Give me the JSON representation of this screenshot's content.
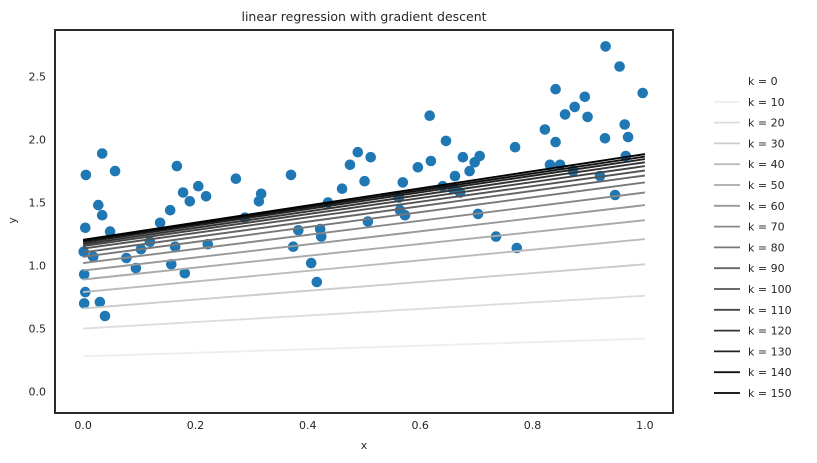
{
  "chart_data": {
    "type": "scatter",
    "title": "linear regression with gradient descent",
    "xlabel": "x",
    "ylabel": "y",
    "xlim": [
      -0.05,
      1.05
    ],
    "ylim": [
      -0.17,
      2.87
    ],
    "xticks": [
      0.0,
      0.2,
      0.4,
      0.6,
      0.8,
      1.0
    ],
    "yticks": [
      0.0,
      0.5,
      1.0,
      1.5,
      2.0,
      2.5
    ],
    "grid": false,
    "legend_position": "right-outside",
    "point_color": "#1f77b4",
    "frame_color": "#2b2b2b",
    "text_color": "#262626",
    "points": [
      [
        0.034,
        1.89
      ],
      [
        0.005,
        1.72
      ],
      [
        0.057,
        1.75
      ],
      [
        0.167,
        1.79
      ],
      [
        0.178,
        1.58
      ],
      [
        0.205,
        1.63
      ],
      [
        0.19,
        1.51
      ],
      [
        0.219,
        1.55
      ],
      [
        0.155,
        1.44
      ],
      [
        0.027,
        1.48
      ],
      [
        0.034,
        1.4
      ],
      [
        0.137,
        1.34
      ],
      [
        0.004,
        1.3
      ],
      [
        0.048,
        1.27
      ],
      [
        0.119,
        1.19
      ],
      [
        0.103,
        1.13
      ],
      [
        0.001,
        1.11
      ],
      [
        0.018,
        1.07
      ],
      [
        0.077,
        1.06
      ],
      [
        0.164,
        1.15
      ],
      [
        0.222,
        1.17
      ],
      [
        0.094,
        0.98
      ],
      [
        0.157,
        1.01
      ],
      [
        0.002,
        0.93
      ],
      [
        0.181,
        0.94
      ],
      [
        0.004,
        0.79
      ],
      [
        0.002,
        0.7
      ],
      [
        0.03,
        0.71
      ],
      [
        0.039,
        0.6
      ],
      [
        0.617,
        2.19
      ],
      [
        0.489,
        1.9
      ],
      [
        0.512,
        1.86
      ],
      [
        0.475,
        1.8
      ],
      [
        0.619,
        1.83
      ],
      [
        0.596,
        1.78
      ],
      [
        0.37,
        1.72
      ],
      [
        0.272,
        1.69
      ],
      [
        0.501,
        1.67
      ],
      [
        0.569,
        1.66
      ],
      [
        0.461,
        1.61
      ],
      [
        0.317,
        1.57
      ],
      [
        0.313,
        1.51
      ],
      [
        0.436,
        1.5
      ],
      [
        0.562,
        1.54
      ],
      [
        0.564,
        1.44
      ],
      [
        0.288,
        1.38
      ],
      [
        0.573,
        1.4
      ],
      [
        0.507,
        1.35
      ],
      [
        0.383,
        1.28
      ],
      [
        0.422,
        1.29
      ],
      [
        0.424,
        1.23
      ],
      [
        0.374,
        1.15
      ],
      [
        0.406,
        1.02
      ],
      [
        0.416,
        0.87
      ],
      [
        0.93,
        2.74
      ],
      [
        0.955,
        2.58
      ],
      [
        0.841,
        2.4
      ],
      [
        0.893,
        2.34
      ],
      [
        0.996,
        2.37
      ],
      [
        0.875,
        2.26
      ],
      [
        0.858,
        2.2
      ],
      [
        0.898,
        2.18
      ],
      [
        0.964,
        2.12
      ],
      [
        0.822,
        2.08
      ],
      [
        0.646,
        1.99
      ],
      [
        0.97,
        2.02
      ],
      [
        0.929,
        2.01
      ],
      [
        0.841,
        1.98
      ],
      [
        0.769,
        1.94
      ],
      [
        0.676,
        1.86
      ],
      [
        0.706,
        1.87
      ],
      [
        0.697,
        1.82
      ],
      [
        0.688,
        1.75
      ],
      [
        0.662,
        1.71
      ],
      [
        0.966,
        1.87
      ],
      [
        0.831,
        1.8
      ],
      [
        0.849,
        1.8
      ],
      [
        0.872,
        1.75
      ],
      [
        0.92,
        1.71
      ],
      [
        0.671,
        1.58
      ],
      [
        0.658,
        1.61
      ],
      [
        0.64,
        1.63
      ],
      [
        0.947,
        1.56
      ],
      [
        0.703,
        1.41
      ],
      [
        0.735,
        1.23
      ],
      [
        0.772,
        1.14
      ]
    ],
    "lines": [
      {
        "k": 0,
        "label": "k = 0",
        "intercept": 0.0,
        "slope": 0.0,
        "color": "#ffffff"
      },
      {
        "k": 10,
        "label": "k = 10",
        "intercept": 0.28,
        "slope": 0.14,
        "color": "#eeeeee"
      },
      {
        "k": 20,
        "label": "k = 20",
        "intercept": 0.5,
        "slope": 0.26,
        "color": "#dddddd"
      },
      {
        "k": 30,
        "label": "k = 30",
        "intercept": 0.66,
        "slope": 0.35,
        "color": "#cccccc"
      },
      {
        "k": 40,
        "label": "k = 40",
        "intercept": 0.79,
        "slope": 0.42,
        "color": "#bbbbbb"
      },
      {
        "k": 50,
        "label": "k = 50",
        "intercept": 0.89,
        "slope": 0.47,
        "color": "#aaaaaa"
      },
      {
        "k": 60,
        "label": "k = 60",
        "intercept": 0.96,
        "slope": 0.52,
        "color": "#999999"
      },
      {
        "k": 70,
        "label": "k = 70",
        "intercept": 1.02,
        "slope": 0.56,
        "color": "#888888"
      },
      {
        "k": 80,
        "label": "k = 80",
        "intercept": 1.07,
        "slope": 0.59,
        "color": "#777777"
      },
      {
        "k": 90,
        "label": "k = 90",
        "intercept": 1.105,
        "slope": 0.61,
        "color": "#666666"
      },
      {
        "k": 100,
        "label": "k = 100",
        "intercept": 1.135,
        "slope": 0.62,
        "color": "#555555"
      },
      {
        "k": 110,
        "label": "k = 110",
        "intercept": 1.155,
        "slope": 0.635,
        "color": "#444444"
      },
      {
        "k": 120,
        "label": "k = 120",
        "intercept": 1.17,
        "slope": 0.65,
        "color": "#333333"
      },
      {
        "k": 130,
        "label": "k = 130",
        "intercept": 1.185,
        "slope": 0.66,
        "color": "#222222"
      },
      {
        "k": 140,
        "label": "k = 140",
        "intercept": 1.195,
        "slope": 0.67,
        "color": "#111111"
      },
      {
        "k": 150,
        "label": "k = 150",
        "intercept": 1.205,
        "slope": 0.68,
        "color": "#000000"
      }
    ]
  }
}
